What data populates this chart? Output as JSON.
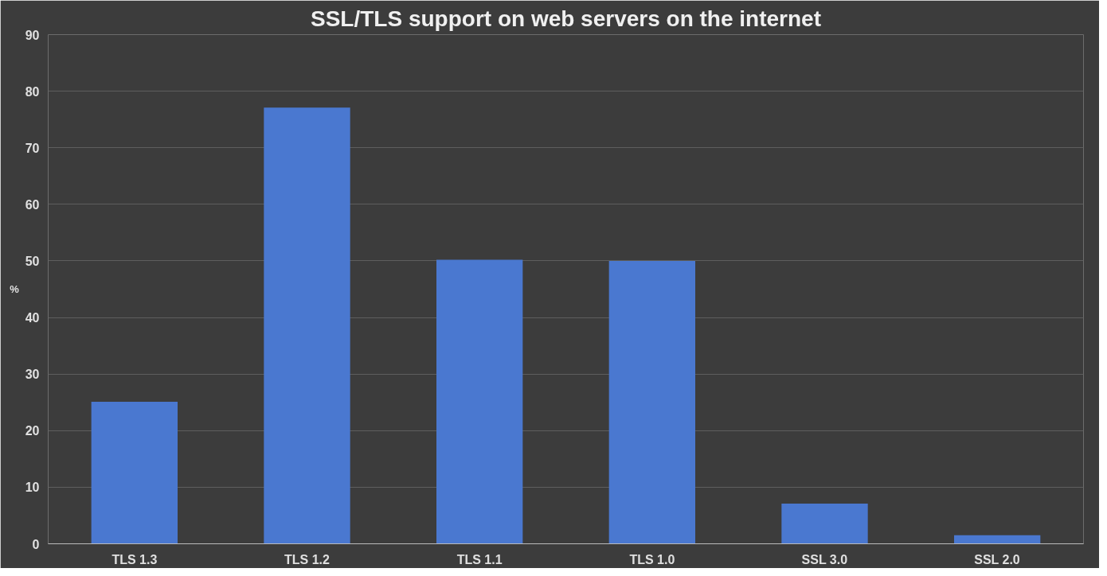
{
  "chart_data": {
    "type": "bar",
    "title": "SSL/TLS support on web servers on the internet",
    "ylabel": "%",
    "categories": [
      "TLS 1.3",
      "TLS 1.2",
      "TLS 1.1",
      "TLS 1.0",
      "SSL 3.0",
      "SSL 2.0"
    ],
    "values": [
      25.1,
      77.1,
      50.2,
      50.0,
      7.1,
      1.5
    ],
    "color": "#4a78d0",
    "ylim": [
      0,
      90
    ],
    "yticks": [
      0,
      10,
      20,
      30,
      40,
      50,
      60,
      70,
      80,
      90
    ],
    "grid": "y"
  }
}
